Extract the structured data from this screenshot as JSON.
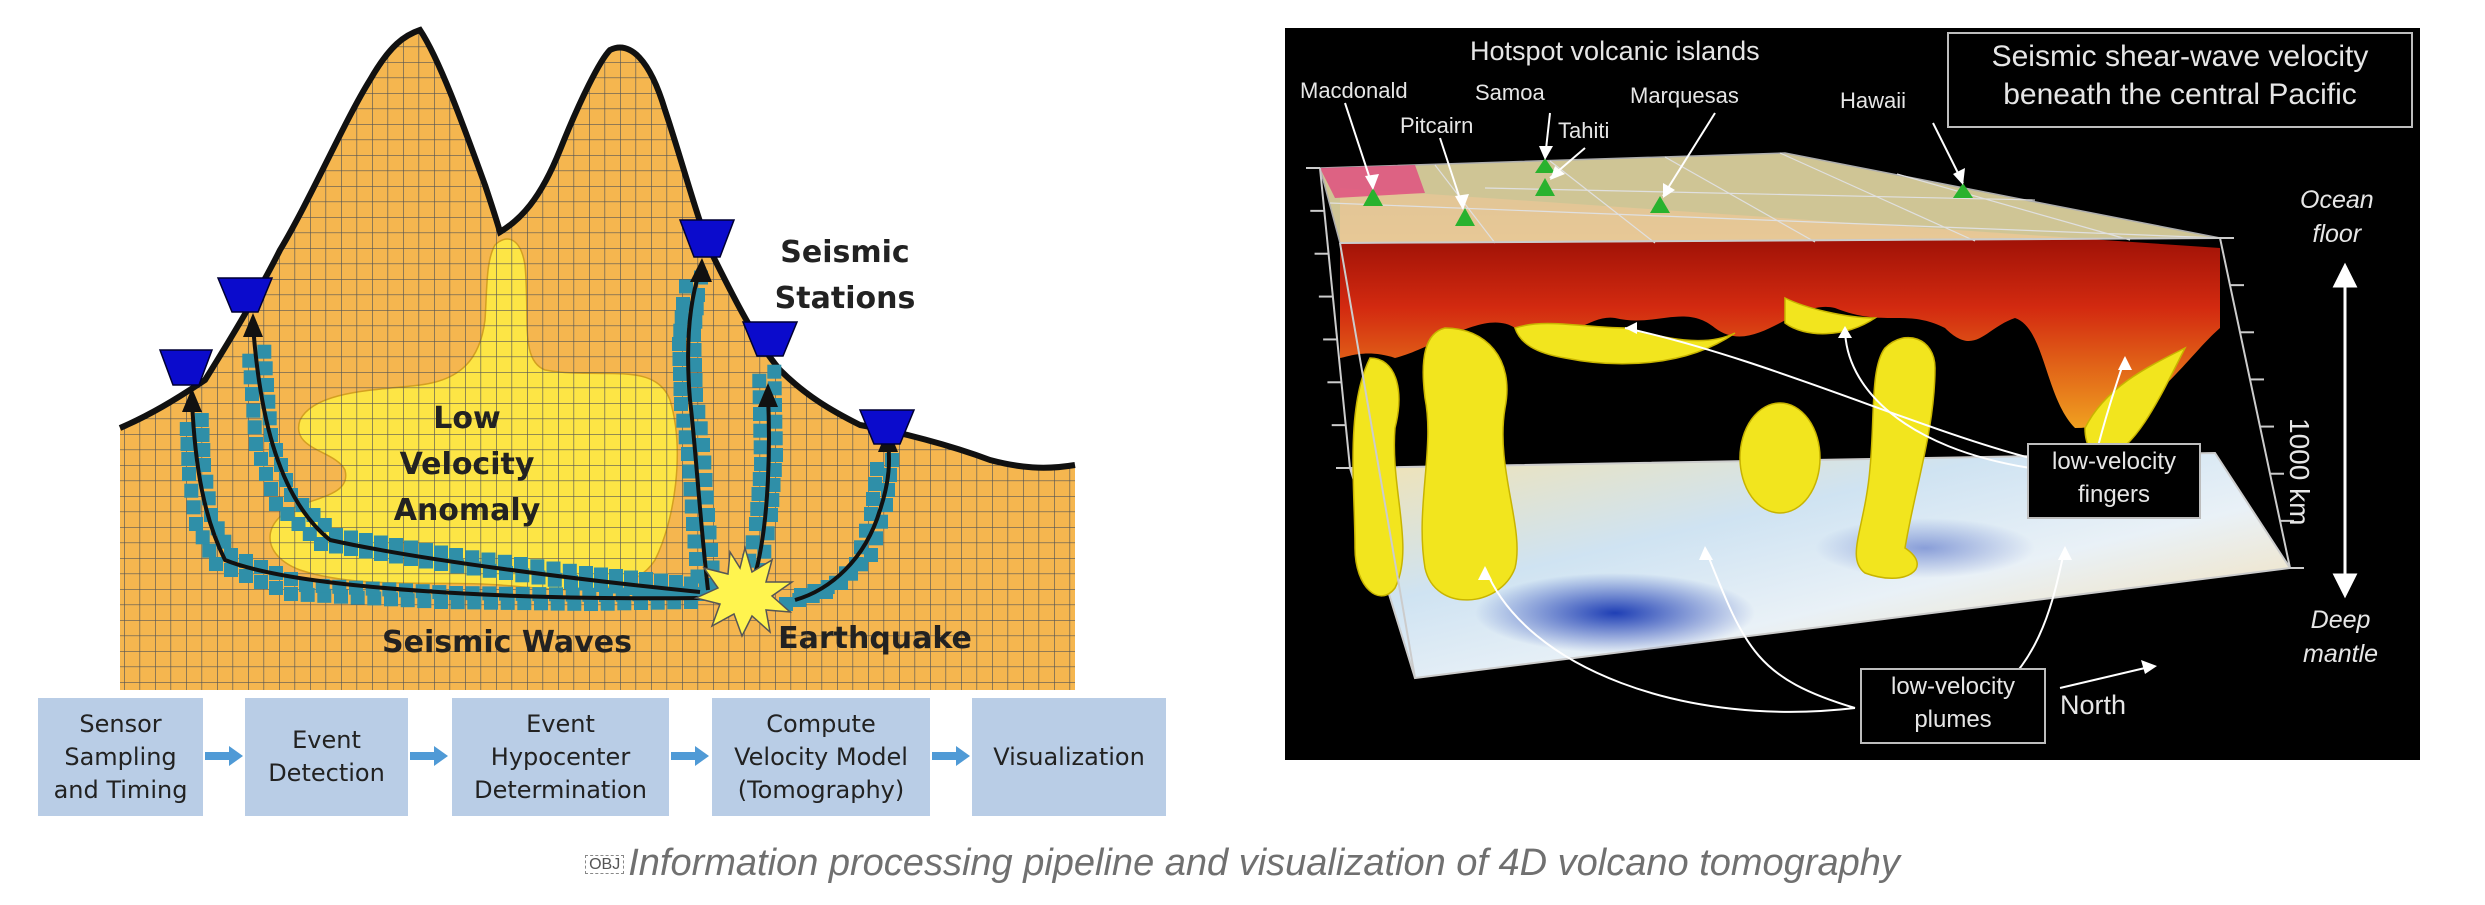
{
  "left_diagram": {
    "labels": {
      "low_velocity_anomaly": [
        "Low",
        "Velocity",
        "Anomaly"
      ],
      "seismic_stations": [
        "Seismic",
        "Stations"
      ],
      "seismic_waves": "Seismic Waves",
      "earthquake": "Earthquake"
    },
    "colors": {
      "terrain": "#f5b64f",
      "grid": "#555555",
      "anomaly": "#fde545",
      "wave_cells": "#2f8fa8",
      "station": "#0b0bcc",
      "earthquake": "#fff44f"
    }
  },
  "pipeline": {
    "steps": [
      "Sensor\nSampling\nand Timing",
      "Event\nDetection",
      "Event\nHypocenter\nDetermination",
      "Compute\nVelocity Model\n(Tomography)",
      "Visualization"
    ],
    "colors": {
      "box": "#b9cde6",
      "arrow": "#4f9ad6"
    }
  },
  "tomography": {
    "top_label": "Hotspot volcanic islands",
    "title_box": [
      "Seismic shear-wave velocity",
      "beneath the central Pacific"
    ],
    "islands": [
      "Macdonald",
      "Pitcairn",
      "Samoa",
      "Tahiti",
      "Marquesas",
      "Hawaii"
    ],
    "ocean_floor": [
      "Ocean",
      "floor"
    ],
    "deep_mantle": [
      "Deep",
      "mantle"
    ],
    "depth": "1000 km",
    "fingers_box": [
      "low-velocity",
      "fingers"
    ],
    "plumes_box": [
      "low-velocity",
      "plumes"
    ],
    "north": "North"
  },
  "caption": {
    "obj_marker": "OBJ",
    "text": "Information processing pipeline and visualization of 4D volcano tomography"
  }
}
